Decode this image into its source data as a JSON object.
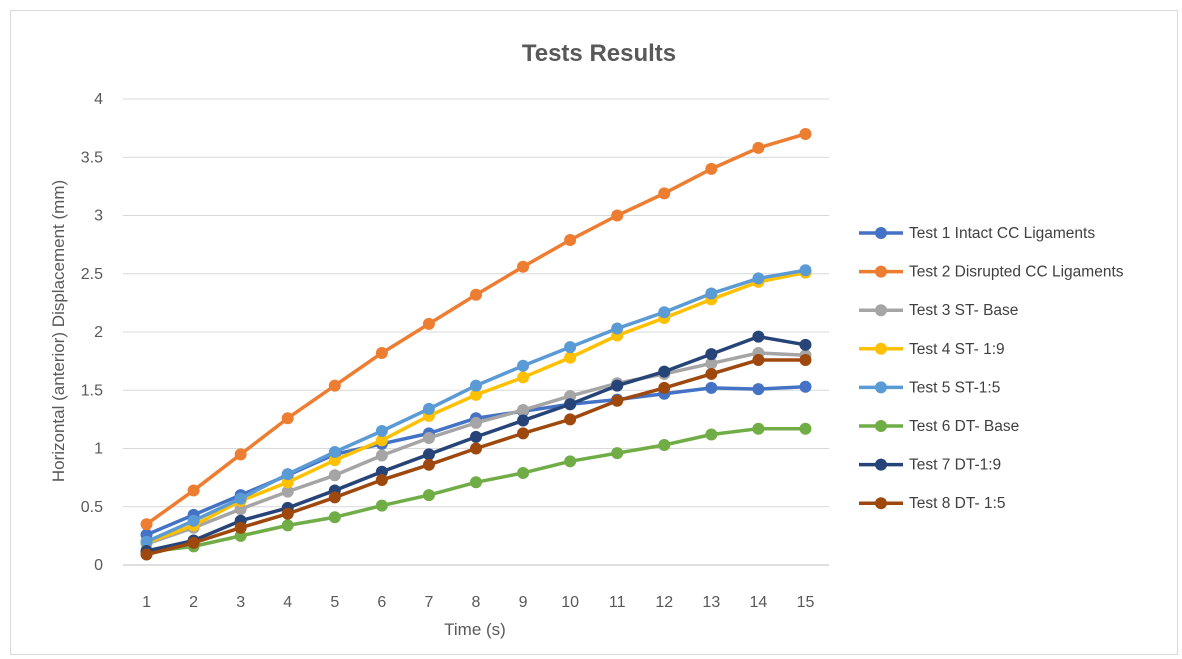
{
  "chart_data": {
    "type": "line",
    "title": "Tests Results",
    "xlabel": "Time (s)",
    "ylabel": "Horizontal (anterior) Displacement (mm)",
    "categories": [
      "1",
      "2",
      "3",
      "4",
      "5",
      "6",
      "7",
      "8",
      "9",
      "10",
      "11",
      "12",
      "13",
      "14",
      "15"
    ],
    "y_ticks": [
      "0",
      "0.5",
      "1",
      "1.5",
      "2",
      "2.5",
      "3",
      "3.5",
      "4"
    ],
    "ylim": [
      0,
      4
    ],
    "grid": "horizontal",
    "legend_position": "right",
    "series": [
      {
        "name": "Test 1 Intact CC Ligaments",
        "color": "#4472c4",
        "values": [
          0.26,
          0.43,
          0.6,
          0.77,
          0.95,
          1.04,
          1.13,
          1.26,
          1.32,
          1.38,
          1.42,
          1.47,
          1.52,
          1.51,
          1.53
        ]
      },
      {
        "name": "Test 2 Disrupted CC Ligaments",
        "color": "#ed7d31",
        "values": [
          0.35,
          0.64,
          0.95,
          1.26,
          1.54,
          1.82,
          2.07,
          2.32,
          2.56,
          2.79,
          3.0,
          3.19,
          3.4,
          3.58,
          3.7
        ]
      },
      {
        "name": "Test 3 ST- Base",
        "color": "#a5a5a5",
        "values": [
          0.18,
          0.32,
          0.48,
          0.63,
          0.77,
          0.94,
          1.09,
          1.22,
          1.33,
          1.45,
          1.56,
          1.64,
          1.73,
          1.82,
          1.8
        ]
      },
      {
        "name": "Test 4 ST- 1:9",
        "color": "#ffc000",
        "values": [
          0.19,
          0.34,
          0.55,
          0.71,
          0.9,
          1.07,
          1.28,
          1.46,
          1.61,
          1.78,
          1.97,
          2.12,
          2.28,
          2.43,
          2.51
        ]
      },
      {
        "name": "Test 5 ST-1:5",
        "color": "#5b9bd5",
        "values": [
          0.2,
          0.38,
          0.57,
          0.78,
          0.97,
          1.15,
          1.34,
          1.54,
          1.71,
          1.87,
          2.03,
          2.17,
          2.33,
          2.46,
          2.53
        ]
      },
      {
        "name": "Test 6 DT- Base",
        "color": "#70ad47",
        "values": [
          0.11,
          0.16,
          0.25,
          0.34,
          0.41,
          0.51,
          0.6,
          0.71,
          0.79,
          0.89,
          0.96,
          1.03,
          1.12,
          1.17,
          1.17
        ]
      },
      {
        "name": "Test 7 DT-1:9",
        "color": "#264478",
        "values": [
          0.12,
          0.21,
          0.38,
          0.49,
          0.64,
          0.8,
          0.95,
          1.1,
          1.24,
          1.38,
          1.54,
          1.66,
          1.81,
          1.96,
          1.89
        ]
      },
      {
        "name": "Test 8 DT- 1:5",
        "color": "#9e480e",
        "values": [
          0.09,
          0.19,
          0.32,
          0.44,
          0.58,
          0.73,
          0.86,
          1.0,
          1.13,
          1.25,
          1.41,
          1.52,
          1.64,
          1.76,
          1.76
        ]
      }
    ]
  }
}
